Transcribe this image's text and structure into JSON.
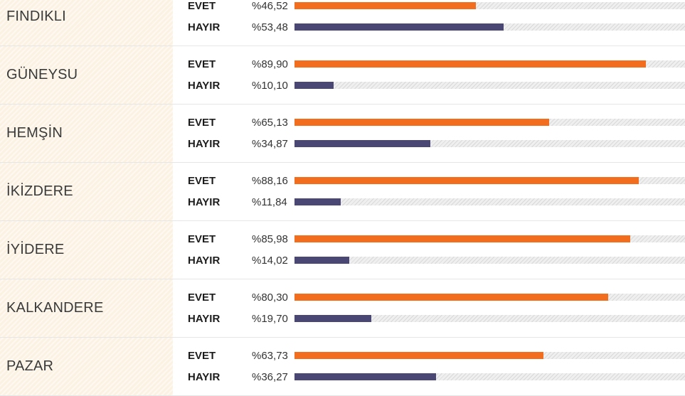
{
  "colors": {
    "evet": "#f26d1d",
    "hayir": "#4a4774",
    "district_bg": "#fbf2e2"
  },
  "chart_data": {
    "type": "bar",
    "orientation": "horizontal",
    "series_names": [
      "EVET",
      "HAYIR"
    ],
    "value_range": [
      0,
      100
    ],
    "rows": [
      {
        "district": "FINDIKLI",
        "evet_label": "EVET",
        "hayir_label": "HAYIR",
        "evet": 46.52,
        "hayir": 53.48,
        "evet_text": "%46,52",
        "hayir_text": "%53,48"
      },
      {
        "district": "GÜNEYSU",
        "evet_label": "EVET",
        "hayir_label": "HAYIR",
        "evet": 89.9,
        "hayir": 10.1,
        "evet_text": "%89,90",
        "hayir_text": "%10,10"
      },
      {
        "district": "HEMŞİN",
        "evet_label": "EVET",
        "hayir_label": "HAYIR",
        "evet": 65.13,
        "hayir": 34.87,
        "evet_text": "%65,13",
        "hayir_text": "%34,87"
      },
      {
        "district": "İKİZDERE",
        "evet_label": "EVET",
        "hayir_label": "HAYIR",
        "evet": 88.16,
        "hayir": 11.84,
        "evet_text": "%88,16",
        "hayir_text": "%11,84"
      },
      {
        "district": "İYİDERE",
        "evet_label": "EVET",
        "hayir_label": "HAYIR",
        "evet": 85.98,
        "hayir": 14.02,
        "evet_text": "%85,98",
        "hayir_text": "%14,02"
      },
      {
        "district": "KALKANDERE",
        "evet_label": "EVET",
        "hayir_label": "HAYIR",
        "evet": 80.3,
        "hayir": 19.7,
        "evet_text": "%80,30",
        "hayir_text": "%19,70"
      },
      {
        "district": "PAZAR",
        "evet_label": "EVET",
        "hayir_label": "HAYIR",
        "evet": 63.73,
        "hayir": 36.27,
        "evet_text": "%63,73",
        "hayir_text": "%36,27"
      }
    ]
  }
}
